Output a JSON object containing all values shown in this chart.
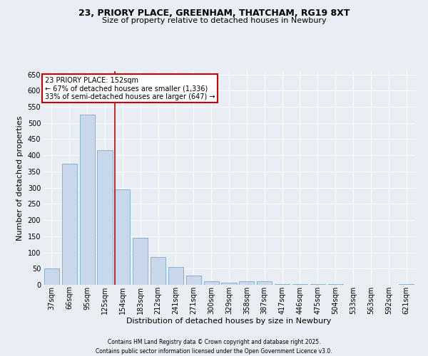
{
  "title1": "23, PRIORY PLACE, GREENHAM, THATCHAM, RG19 8XT",
  "title2": "Size of property relative to detached houses in Newbury",
  "xlabel": "Distribution of detached houses by size in Newbury",
  "ylabel": "Number of detached properties",
  "footer1": "Contains HM Land Registry data © Crown copyright and database right 2025.",
  "footer2": "Contains public sector information licensed under the Open Government Licence v3.0.",
  "categories": [
    "37sqm",
    "66sqm",
    "95sqm",
    "125sqm",
    "154sqm",
    "183sqm",
    "212sqm",
    "241sqm",
    "271sqm",
    "300sqm",
    "329sqm",
    "358sqm",
    "387sqm",
    "417sqm",
    "446sqm",
    "475sqm",
    "504sqm",
    "533sqm",
    "563sqm",
    "592sqm",
    "621sqm"
  ],
  "values": [
    50,
    375,
    525,
    415,
    295,
    145,
    85,
    55,
    28,
    10,
    7,
    10,
    10,
    2,
    2,
    3,
    2,
    1,
    1,
    1,
    2
  ],
  "bar_color": "#c8d8ea",
  "bar_edge_color": "#7aaac8",
  "marker_line_index": 4,
  "marker_label": "23 PRIORY PLACE: 152sqm",
  "annotation_line1": "← 67% of detached houses are smaller (1,336)",
  "annotation_line2": "33% of semi-detached houses are larger (647) →",
  "ylim": [
    0,
    660
  ],
  "yticks": [
    0,
    50,
    100,
    150,
    200,
    250,
    300,
    350,
    400,
    450,
    500,
    550,
    600,
    650
  ],
  "background_color": "#e8eef4",
  "plot_bg_color": "#e8eef4",
  "grid_color": "#ffffff",
  "annotation_box_color": "#ffffff",
  "annotation_box_edge": "#cc0000",
  "marker_line_color": "#cc0000",
  "title_fontsize": 9,
  "subtitle_fontsize": 8,
  "ylabel_fontsize": 8,
  "xlabel_fontsize": 8,
  "tick_fontsize": 7,
  "footer_fontsize": 5.5
}
